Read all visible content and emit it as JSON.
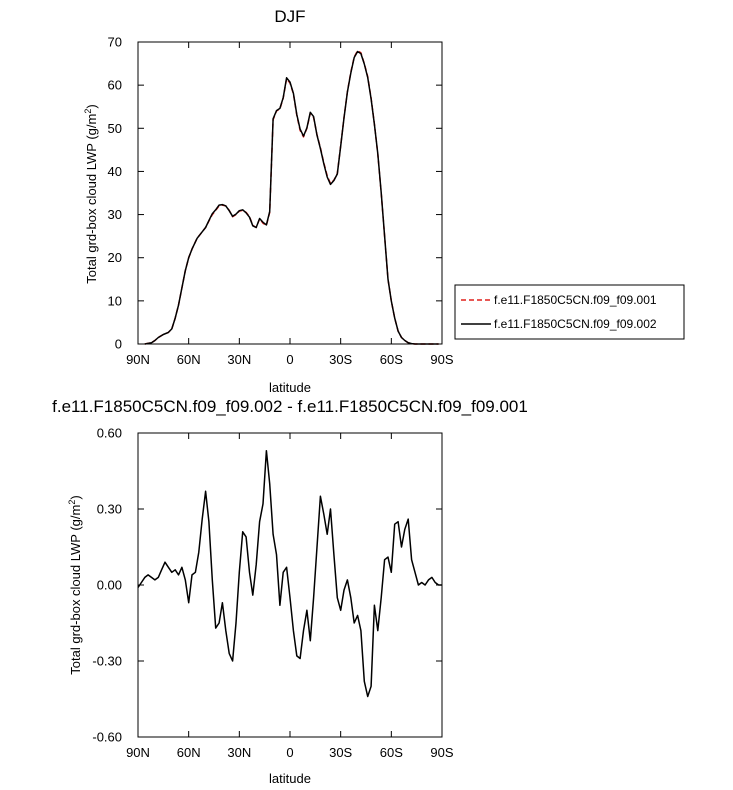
{
  "chart_data": [
    {
      "type": "line",
      "title": "DJF",
      "xlabel": "latitude",
      "ylabel": "Total grd-box cloud LWP (g/m²)",
      "xlim": [
        90,
        -90
      ],
      "ylim": [
        0,
        70
      ],
      "xticks": [
        90,
        60,
        30,
        0,
        -30,
        -60,
        -90
      ],
      "xtick_labels": [
        "90N",
        "60N",
        "30N",
        "0",
        "30S",
        "60S",
        "90S"
      ],
      "yticks": [
        0,
        10,
        20,
        30,
        40,
        50,
        60,
        70
      ],
      "ytick_labels": [
        "0",
        "10",
        "20",
        "30",
        "40",
        "50",
        "60",
        "70"
      ],
      "grid": false,
      "legend": "right",
      "series": [
        {
          "name": "f.e11.F1850C5CN.f09_f09.001",
          "color": "#e0201b",
          "dash": "dashed",
          "x": [
            86,
            82,
            80,
            78,
            75,
            72,
            70,
            68,
            66,
            64,
            62,
            60,
            58,
            55,
            52,
            50,
            48,
            46,
            44,
            42,
            40,
            38,
            36,
            34,
            32,
            30,
            28,
            26,
            24,
            22,
            20,
            18,
            16,
            14,
            12,
            10,
            8,
            6,
            4,
            2,
            0,
            -2,
            -4,
            -6,
            -8,
            -10,
            -12,
            -14,
            -16,
            -18,
            -20,
            -22,
            -24,
            -26,
            -28,
            -30,
            -32,
            -34,
            -36,
            -38,
            -40,
            -42,
            -44,
            -46,
            -48,
            -50,
            -52,
            -54,
            -56,
            -58,
            -60,
            -62,
            -64,
            -66,
            -68,
            -70,
            -72,
            -74,
            -76,
            -78,
            -80,
            -82,
            -84,
            -86,
            -88
          ],
          "y": [
            0,
            0.3,
            0.8,
            1.5,
            2.2,
            2.7,
            3.5,
            6,
            9,
            13,
            17,
            20,
            22,
            24.5,
            26,
            27,
            28.5,
            30,
            31,
            32,
            32.2,
            32,
            31,
            29.5,
            30,
            30.8,
            31,
            30.5,
            29.5,
            27.5,
            27,
            29,
            28,
            27.5,
            30.5,
            52,
            54,
            54.5,
            57,
            61.5,
            60.5,
            58,
            53,
            49.5,
            48,
            50,
            53.5,
            52.5,
            48.5,
            45.5,
            42,
            39,
            37.2,
            38,
            39.5,
            46,
            52.5,
            58.5,
            63,
            66.5,
            68,
            67.5,
            65,
            62,
            57,
            51,
            44,
            35,
            25,
            15,
            10,
            6,
            3,
            1.5,
            0.8,
            0.3,
            0.1,
            0,
            0,
            0,
            0,
            0,
            0,
            0,
            0
          ]
        },
        {
          "name": "f.e11.F1850C5CN.f09_f09.002",
          "color": "#000000",
          "dash": "solid",
          "x": [
            86,
            82,
            80,
            78,
            75,
            72,
            70,
            68,
            66,
            64,
            62,
            60,
            58,
            55,
            52,
            50,
            48,
            46,
            44,
            42,
            40,
            38,
            36,
            34,
            32,
            30,
            28,
            26,
            24,
            22,
            20,
            18,
            16,
            14,
            12,
            10,
            8,
            6,
            4,
            2,
            0,
            -2,
            -4,
            -6,
            -8,
            -10,
            -12,
            -14,
            -16,
            -18,
            -20,
            -22,
            -24,
            -26,
            -28,
            -30,
            -32,
            -34,
            -36,
            -38,
            -40,
            -42,
            -44,
            -46,
            -48,
            -50,
            -52,
            -54,
            -56,
            -58,
            -60,
            -62,
            -64,
            -66,
            -68,
            -70,
            -72,
            -74,
            -76,
            -78,
            -80,
            -82,
            -84,
            -86,
            -88
          ],
          "y": [
            0,
            0.3,
            0.8,
            1.5,
            2.2,
            2.7,
            3.5,
            6,
            9,
            13,
            17,
            20,
            22,
            24.5,
            26,
            27,
            28.6,
            30.2,
            31.1,
            32.2,
            32.3,
            32,
            30.9,
            29.6,
            30.1,
            30.9,
            31.1,
            30.4,
            29.4,
            27.4,
            27,
            29.1,
            28.2,
            27.6,
            30.7,
            52.2,
            54.1,
            54.6,
            57.1,
            61.7,
            60.7,
            58.1,
            53.2,
            49.8,
            48.2,
            50.1,
            53.7,
            52.7,
            48.4,
            45.3,
            41.8,
            38.7,
            37,
            37.9,
            39.4,
            45.9,
            52.4,
            58.4,
            62.8,
            66.4,
            67.8,
            67.3,
            64.9,
            61.8,
            56.8,
            50.9,
            44.1,
            35.1,
            25,
            15,
            10,
            6,
            3,
            1.5,
            0.8,
            0.3,
            0.1,
            0,
            0,
            0,
            0,
            0,
            0,
            0,
            0
          ]
        }
      ]
    },
    {
      "type": "line",
      "title": "f.e11.F1850C5CN.f09_f09.002 - f.e11.F1850C5CN.f09_f09.001",
      "xlabel": "latitude",
      "ylabel": "Total grd-box cloud LWP (g/m²)",
      "xlim": [
        90,
        -90
      ],
      "ylim": [
        -0.6,
        0.6
      ],
      "xticks": [
        90,
        60,
        30,
        0,
        -30,
        -60,
        -90
      ],
      "xtick_labels": [
        "90N",
        "60N",
        "30N",
        "0",
        "30S",
        "60S",
        "90S"
      ],
      "yticks": [
        -0.6,
        -0.3,
        0,
        0.3,
        0.6
      ],
      "ytick_labels": [
        "-0.60",
        "-0.30",
        "0.00",
        "0.30",
        "0.60"
      ],
      "grid": false,
      "series": [
        {
          "color": "#000000",
          "dash": "solid",
          "x": [
            90,
            88,
            86,
            84,
            82,
            80,
            78,
            76,
            74,
            72,
            70,
            68,
            66,
            64,
            62,
            60,
            58,
            56,
            54,
            52,
            50,
            48,
            46,
            44,
            42,
            40,
            38,
            36,
            34,
            32,
            30,
            28,
            26,
            24,
            22,
            20,
            18,
            16,
            14,
            12,
            10,
            8,
            6,
            4,
            2,
            0,
            -2,
            -4,
            -6,
            -8,
            -10,
            -12,
            -14,
            -16,
            -18,
            -20,
            -22,
            -24,
            -26,
            -28,
            -30,
            -32,
            -34,
            -36,
            -38,
            -40,
            -42,
            -44,
            -46,
            -48,
            -50,
            -52,
            -54,
            -56,
            -58,
            -60,
            -62,
            -64,
            -66,
            -68,
            -70,
            -72,
            -74,
            -76,
            -78,
            -80,
            -82,
            -84,
            -86,
            -88,
            -90
          ],
          "y": [
            -0.01,
            0.01,
            0.03,
            0.04,
            0.03,
            0.02,
            0.03,
            0.06,
            0.09,
            0.07,
            0.05,
            0.06,
            0.04,
            0.07,
            0.02,
            -0.07,
            0.04,
            0.05,
            0.13,
            0.26,
            0.37,
            0.25,
            0.02,
            -0.17,
            -0.15,
            -0.07,
            -0.18,
            -0.27,
            -0.3,
            -0.15,
            0.05,
            0.21,
            0.19,
            0.05,
            -0.04,
            0.08,
            0.25,
            0.32,
            0.53,
            0.4,
            0.2,
            0.12,
            -0.08,
            0.05,
            0.07,
            -0.05,
            -0.18,
            -0.28,
            -0.29,
            -0.18,
            -0.1,
            -0.22,
            -0.05,
            0.15,
            0.35,
            0.28,
            0.2,
            0.3,
            0.12,
            -0.05,
            -0.1,
            -0.02,
            0.02,
            -0.05,
            -0.15,
            -0.12,
            -0.18,
            -0.38,
            -0.44,
            -0.4,
            -0.08,
            -0.18,
            -0.05,
            0.1,
            0.11,
            0.05,
            0.24,
            0.25,
            0.15,
            0.22,
            0.26,
            0.1,
            0.05,
            0.0,
            0.01,
            0.0,
            0.02,
            0.03,
            0.01,
            0.0,
            0.0
          ]
        }
      ]
    }
  ]
}
